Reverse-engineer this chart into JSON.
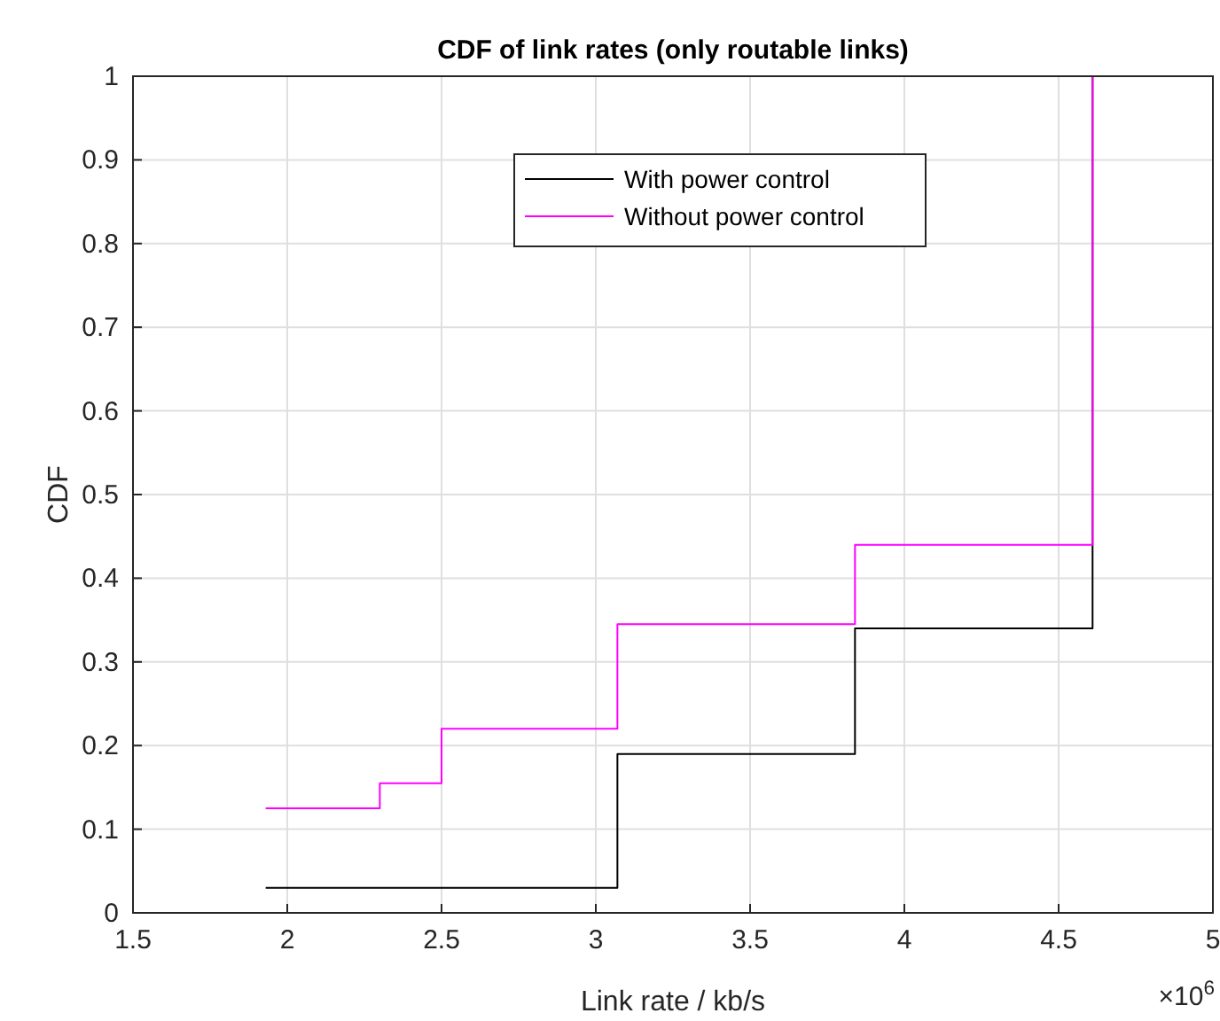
{
  "chart_data": {
    "type": "step",
    "title": "CDF of link rates (only routable links)",
    "xlabel": "Link rate / kb/s",
    "ylabel": "CDF",
    "series": [
      {
        "name": "With power control",
        "color": "#000000",
        "x": [
          1.93,
          3.07,
          3.84,
          4.61,
          4.61
        ],
        "values": [
          0.03,
          0.19,
          0.34,
          0.34,
          1
        ]
      },
      {
        "name": "Without power control",
        "color": "#ff00ff",
        "x": [
          1.93,
          2.3,
          2.5,
          3.07,
          3.84,
          4.61,
          4.61
        ],
        "values": [
          0.125,
          0.155,
          0.22,
          0.345,
          0.44,
          0.44,
          1
        ]
      }
    ],
    "xlim": [
      1.5,
      5
    ],
    "xticks": [
      1.5,
      2,
      2.5,
      3,
      3.5,
      4,
      4.5,
      5
    ],
    "ylim": [
      0,
      1
    ],
    "yticks": [
      0,
      0.1,
      0.2,
      0.3,
      0.4,
      0.5,
      0.6,
      0.7,
      0.8,
      0.9,
      1
    ],
    "grid": true,
    "legend": "top",
    "annotations": [
      "×10$^{6}$"
    ]
  }
}
